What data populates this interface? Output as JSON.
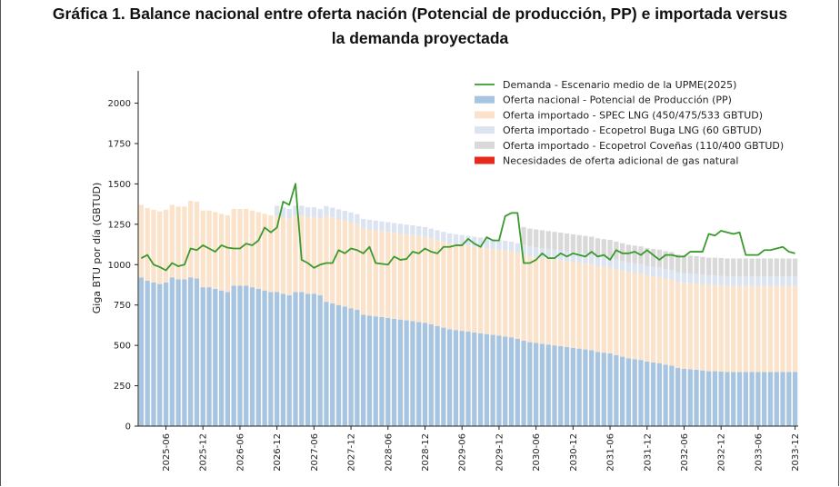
{
  "title_line1": "Gráfica 1. Balance nacional entre oferta nación (Potencial de producción, PP) e importada versus",
  "title_line2": "la demanda proyectada",
  "chart_data": {
    "type": "bar",
    "stacked": true,
    "ylabel": "Giga BTU por día (GBTUD)",
    "xlabel": "",
    "ylim": [
      0,
      2200
    ],
    "yticks": [
      0,
      250,
      500,
      750,
      1000,
      1250,
      1500,
      1750,
      2000
    ],
    "xticks": [
      "2025-06",
      "2025-12",
      "2026-06",
      "2026-12",
      "2027-06",
      "2027-12",
      "2028-06",
      "2028-12",
      "2029-06",
      "2029-12",
      "2030-06",
      "2030-12",
      "2031-06",
      "2031-12",
      "2032-06",
      "2032-12",
      "2033-06",
      "2033-12"
    ],
    "period_start": "2025-02",
    "period_end": "2033-12",
    "legend_position": "top-right",
    "series": [
      {
        "name": "Oferta nacional - Potencial de Producción (PP)",
        "color": "#a7c4e0",
        "kind": "bar",
        "values": [
          920,
          900,
          890,
          880,
          890,
          920,
          910,
          910,
          920,
          915,
          860,
          860,
          850,
          840,
          830,
          870,
          870,
          870,
          860,
          850,
          840,
          830,
          830,
          820,
          810,
          830,
          830,
          820,
          820,
          810,
          770,
          760,
          750,
          740,
          730,
          720,
          690,
          685,
          680,
          675,
          670,
          665,
          660,
          655,
          650,
          645,
          640,
          630,
          620,
          610,
          600,
          595,
          590,
          585,
          580,
          575,
          570,
          565,
          560,
          555,
          550,
          540,
          530,
          520,
          515,
          510,
          505,
          500,
          495,
          490,
          485,
          480,
          475,
          470,
          460,
          455,
          450,
          440,
          430,
          420,
          415,
          410,
          400,
          395,
          390,
          380,
          375,
          360,
          355,
          352,
          350,
          345,
          340,
          340,
          338,
          335,
          335,
          335,
          335,
          335,
          335,
          335,
          335,
          335,
          335,
          335,
          335
        ]
      },
      {
        "name": "Oferta importado - SPEC LNG (450/475/533 GBTUD)",
        "color": "#fbe3cb",
        "kind": "bar",
        "values": [
          450,
          450,
          450,
          450,
          450,
          450,
          450,
          450,
          475,
          475,
          475,
          475,
          475,
          475,
          475,
          475,
          475,
          475,
          475,
          475,
          475,
          475,
          475,
          475,
          475,
          475,
          475,
          475,
          475,
          475,
          533,
          533,
          533,
          533,
          533,
          533,
          533,
          533,
          533,
          533,
          533,
          533,
          533,
          533,
          533,
          533,
          533,
          533,
          533,
          533,
          533,
          533,
          533,
          533,
          533,
          533,
          533,
          533,
          533,
          533,
          533,
          533,
          533,
          533,
          533,
          533,
          533,
          533,
          533,
          533,
          533,
          533,
          533,
          533,
          533,
          533,
          533,
          533,
          533,
          533,
          533,
          533,
          533,
          533,
          533,
          533,
          533,
          533,
          533,
          533,
          533,
          533,
          533,
          533,
          533,
          533,
          533,
          533,
          533,
          533,
          533,
          533,
          533,
          533,
          533,
          533,
          533
        ]
      },
      {
        "name": "Oferta importado - Ecopetrol Buga LNG (60 GBTUD)",
        "color": "#dbe4f0",
        "kind": "bar",
        "values": [
          0,
          0,
          0,
          0,
          0,
          0,
          0,
          0,
          0,
          0,
          0,
          0,
          0,
          0,
          0,
          0,
          0,
          0,
          0,
          0,
          0,
          0,
          60,
          60,
          60,
          60,
          60,
          60,
          60,
          60,
          60,
          60,
          60,
          60,
          60,
          60,
          60,
          60,
          60,
          60,
          60,
          60,
          60,
          60,
          60,
          60,
          60,
          60,
          60,
          60,
          60,
          60,
          60,
          60,
          60,
          60,
          60,
          60,
          60,
          60,
          60,
          60,
          60,
          60,
          60,
          60,
          60,
          60,
          60,
          60,
          60,
          60,
          60,
          60,
          60,
          60,
          60,
          60,
          60,
          60,
          60,
          60,
          60,
          60,
          60,
          60,
          60,
          60,
          60,
          60,
          60,
          60,
          60,
          60,
          60,
          60,
          60,
          60,
          60,
          60,
          60,
          60,
          60,
          60,
          60,
          60,
          60
        ]
      },
      {
        "name": "Oferta importado - Ecopetrol Coveñas (110/400 GBTUD)",
        "color": "#d9d9d9",
        "kind": "bar",
        "values": [
          0,
          0,
          0,
          0,
          0,
          0,
          0,
          0,
          0,
          0,
          0,
          0,
          0,
          0,
          0,
          0,
          0,
          0,
          0,
          0,
          0,
          0,
          0,
          0,
          0,
          0,
          0,
          0,
          0,
          0,
          0,
          0,
          0,
          0,
          0,
          0,
          0,
          0,
          0,
          0,
          0,
          0,
          0,
          0,
          0,
          0,
          0,
          0,
          0,
          0,
          0,
          0,
          0,
          0,
          0,
          0,
          0,
          0,
          0,
          0,
          0,
          0,
          110,
          110,
          110,
          110,
          110,
          110,
          110,
          110,
          110,
          110,
          110,
          110,
          110,
          110,
          110,
          110,
          110,
          110,
          110,
          110,
          110,
          110,
          110,
          110,
          110,
          110,
          110,
          110,
          110,
          110,
          110,
          110,
          110,
          110,
          110,
          110,
          110,
          110,
          110,
          110,
          110,
          110,
          110,
          110,
          110
        ]
      },
      {
        "name": "Necesidades de oferta adicional de gas natural",
        "color": "#e8281c",
        "kind": "bar",
        "values": [
          0,
          0,
          0,
          0,
          0,
          0,
          0,
          0,
          0,
          0,
          0,
          0,
          0,
          0,
          0,
          0,
          0,
          0,
          0,
          0,
          0,
          0,
          0,
          0,
          0,
          0,
          0,
          0,
          0,
          0,
          0,
          0,
          0,
          0,
          0,
          0,
          0,
          0,
          0,
          0,
          0,
          0,
          0,
          0,
          0,
          0,
          0,
          0,
          0,
          0,
          0,
          0,
          0,
          0,
          0,
          0,
          0,
          0,
          0,
          0,
          0,
          0,
          0,
          0,
          0,
          0,
          0,
          0,
          0,
          0,
          0,
          0,
          0,
          0,
          0,
          0,
          0,
          0,
          0,
          0,
          0,
          0,
          0,
          0,
          0,
          0,
          0,
          0,
          0,
          0,
          0,
          0,
          0,
          0,
          0,
          0,
          0,
          0,
          0,
          0,
          0,
          0,
          0,
          0,
          0,
          0,
          0
        ]
      },
      {
        "name": "Demanda - Escenario medio de la UPME(2025)",
        "color": "#3a9a2e",
        "kind": "line",
        "values": [
          1040,
          1060,
          1000,
          985,
          965,
          1010,
          990,
          1000,
          1100,
          1090,
          1120,
          1100,
          1080,
          1120,
          1105,
          1100,
          1100,
          1130,
          1120,
          1150,
          1230,
          1200,
          1230,
          1390,
          1370,
          1500,
          1030,
          1010,
          980,
          1000,
          1010,
          1010,
          1090,
          1070,
          1100,
          1090,
          1070,
          1110,
          1010,
          1005,
          1000,
          1050,
          1030,
          1035,
          1080,
          1070,
          1100,
          1080,
          1070,
          1110,
          1110,
          1120,
          1120,
          1160,
          1130,
          1110,
          1170,
          1150,
          1150,
          1300,
          1320,
          1320,
          1010,
          1010,
          1030,
          1070,
          1040,
          1040,
          1070,
          1050,
          1070,
          1060,
          1050,
          1080,
          1050,
          1060,
          1030,
          1090,
          1070,
          1070,
          1080,
          1060,
          1090,
          1060,
          1030,
          1060,
          1060,
          1050,
          1050,
          1080,
          1080,
          1080,
          1190,
          1180,
          1210,
          1200,
          1190,
          1200,
          1060,
          1060,
          1060,
          1090,
          1090,
          1100,
          1110,
          1080,
          1070
        ]
      }
    ]
  }
}
